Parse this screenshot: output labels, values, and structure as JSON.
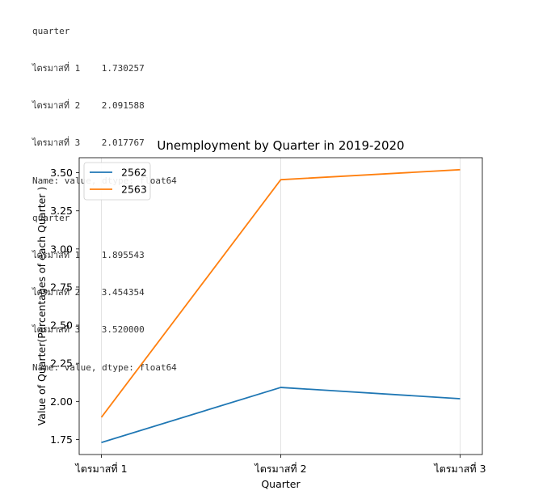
{
  "console_output": {
    "block1": {
      "header": "quarter",
      "rows": [
        {
          "label": "ไตรมาสที่ 1",
          "value": "1.730257"
        },
        {
          "label": "ไตรมาสที่ 2",
          "value": "2.091588"
        },
        {
          "label": "ไตรมาสที่ 3",
          "value": "2.017767"
        }
      ],
      "footer": "Name: value, dtype: float64"
    },
    "block2": {
      "header": "quarter",
      "rows": [
        {
          "label": "ไตรมาสที่ 1",
          "value": "1.895543"
        },
        {
          "label": "ไตรมาสที่ 2",
          "value": "3.454354"
        },
        {
          "label": "ไตรมาสที่ 3",
          "value": "3.520000"
        }
      ],
      "footer": "Name: value, dtype: float64"
    }
  },
  "chart_data": {
    "type": "line",
    "title": "Unemployment by Quarter in 2019-2020",
    "xlabel": "Quarter",
    "ylabel": "Value of Quarter(Percentages of each Quarter )",
    "categories": [
      "ไตรมาสที่ 1",
      "ไตรมาสที่ 2",
      "ไตรมาสที่ 3"
    ],
    "series": [
      {
        "name": "2562",
        "values": [
          1.730257,
          2.091588,
          2.017767
        ],
        "color": "#1f77b4"
      },
      {
        "name": "2563",
        "values": [
          1.895543,
          3.454354,
          3.52
        ],
        "color": "#ff7f0e"
      }
    ],
    "ylim": [
      1.6515,
      3.5987
    ],
    "yticks": [
      1.75,
      2.0,
      2.25,
      2.5,
      2.75,
      3.0,
      3.25,
      3.5
    ],
    "ytick_labels": [
      "1.75",
      "2.00",
      "2.25",
      "2.50",
      "2.75",
      "3.00",
      "3.25",
      "3.50"
    ],
    "grid": "x-only",
    "legend_position": "top-left"
  }
}
